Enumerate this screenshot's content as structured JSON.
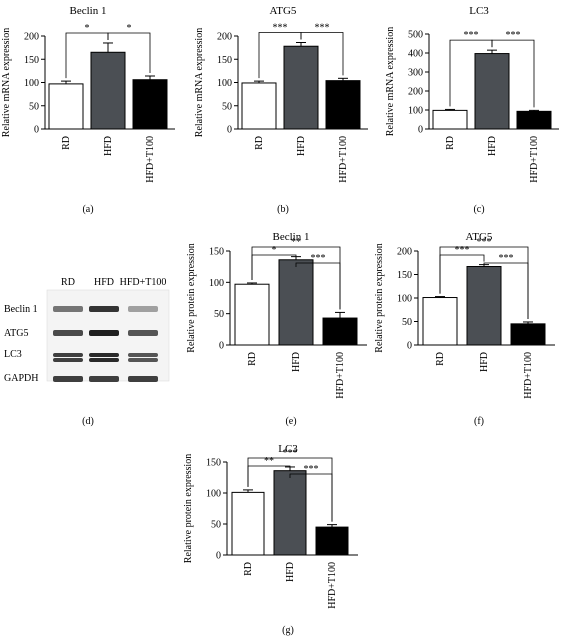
{
  "colors": {
    "RD": "#ffffff",
    "HFD": "#4b4f54",
    "HFD+T100": "#000000"
  },
  "blot": {
    "panel_label": "(d)",
    "column_headers": [
      "RD",
      "HFD",
      "HFD+T100"
    ],
    "row_labels": [
      "Beclin 1",
      "ATG5",
      "LC3",
      "GAPDH"
    ],
    "band_intensity": [
      [
        0.55,
        0.85,
        0.35
      ],
      [
        0.75,
        0.95,
        0.7
      ],
      [
        0.8,
        0.9,
        0.7
      ],
      [
        0.8,
        0.8,
        0.8
      ]
    ]
  },
  "chart_data": [
    {
      "type": "bar",
      "panel_label": "(a)",
      "title": "Beclin 1",
      "categories": [
        "RD",
        "HFD",
        "HFD+T100"
      ],
      "values": [
        97,
        165,
        106
      ],
      "errors": [
        6,
        20,
        8
      ],
      "xlabel": "",
      "ylabel": "Relative mRNA expression",
      "ylim": [
        0,
        200
      ],
      "yticks": [
        0,
        50,
        100,
        150,
        200
      ],
      "significance": [
        {
          "from": 0,
          "to": 1,
          "label": "*"
        },
        {
          "from": 1,
          "to": 2,
          "label": "*"
        }
      ]
    },
    {
      "type": "bar",
      "panel_label": "(b)",
      "title": "ATG5",
      "categories": [
        "RD",
        "HFD",
        "HFD+T100"
      ],
      "values": [
        99,
        178,
        104
      ],
      "errors": [
        4,
        8,
        5
      ],
      "xlabel": "",
      "ylabel": "Relative mRNA expression",
      "ylim": [
        0,
        200
      ],
      "yticks": [
        0,
        50,
        100,
        150,
        200
      ],
      "significance": [
        {
          "from": 0,
          "to": 1,
          "label": "***"
        },
        {
          "from": 1,
          "to": 2,
          "label": "***"
        }
      ]
    },
    {
      "type": "bar",
      "panel_label": "(c)",
      "title": "LC3",
      "categories": [
        "RD",
        "HFD",
        "HFD+T100"
      ],
      "values": [
        98,
        397,
        93
      ],
      "errors": [
        5,
        18,
        5
      ],
      "xlabel": "",
      "ylabel": "Relative mRNA expression",
      "ylim": [
        0,
        500
      ],
      "yticks": [
        0,
        100,
        200,
        300,
        400,
        500
      ],
      "significance": [
        {
          "from": 0,
          "to": 1,
          "label": "***"
        },
        {
          "from": 1,
          "to": 2,
          "label": "***"
        }
      ]
    },
    {
      "type": "bar",
      "panel_label": "(e)",
      "title": "Beclin 1",
      "categories": [
        "RD",
        "HFD",
        "HFD+T100"
      ],
      "values": [
        97,
        136,
        43
      ],
      "errors": [
        2,
        5,
        9
      ],
      "xlabel": "",
      "ylabel": "Relative protein expression",
      "ylim": [
        0,
        150
      ],
      "yticks": [
        0,
        50,
        100,
        150
      ],
      "significance": [
        {
          "from": 0,
          "to": 1,
          "label": "*"
        },
        {
          "from": 0,
          "to": 2,
          "label": "**"
        },
        {
          "from": 1,
          "to": 2,
          "label": "***"
        }
      ]
    },
    {
      "type": "bar",
      "panel_label": "(f)",
      "title": "ATG5",
      "categories": [
        "RD",
        "HFD",
        "HFD+T100"
      ],
      "values": [
        101,
        167,
        45
      ],
      "errors": [
        2,
        4,
        4
      ],
      "xlabel": "",
      "ylabel": "Relative protein expression",
      "ylim": [
        0,
        200
      ],
      "yticks": [
        0,
        50,
        100,
        150,
        200
      ],
      "significance": [
        {
          "from": 0,
          "to": 1,
          "label": "***"
        },
        {
          "from": 0,
          "to": 2,
          "label": "***"
        },
        {
          "from": 1,
          "to": 2,
          "label": "***"
        }
      ]
    },
    {
      "type": "bar",
      "panel_label": "(g)",
      "title": "LC3",
      "categories": [
        "RD",
        "HFD",
        "HFD+T100"
      ],
      "values": [
        101,
        136,
        45
      ],
      "errors": [
        4,
        6,
        4
      ],
      "xlabel": "",
      "ylabel": "Relative protein expression",
      "ylim": [
        0,
        150
      ],
      "yticks": [
        0,
        50,
        100,
        150
      ],
      "significance": [
        {
          "from": 0,
          "to": 1,
          "label": "**"
        },
        {
          "from": 0,
          "to": 2,
          "label": "***"
        },
        {
          "from": 1,
          "to": 2,
          "label": "***"
        }
      ]
    }
  ]
}
